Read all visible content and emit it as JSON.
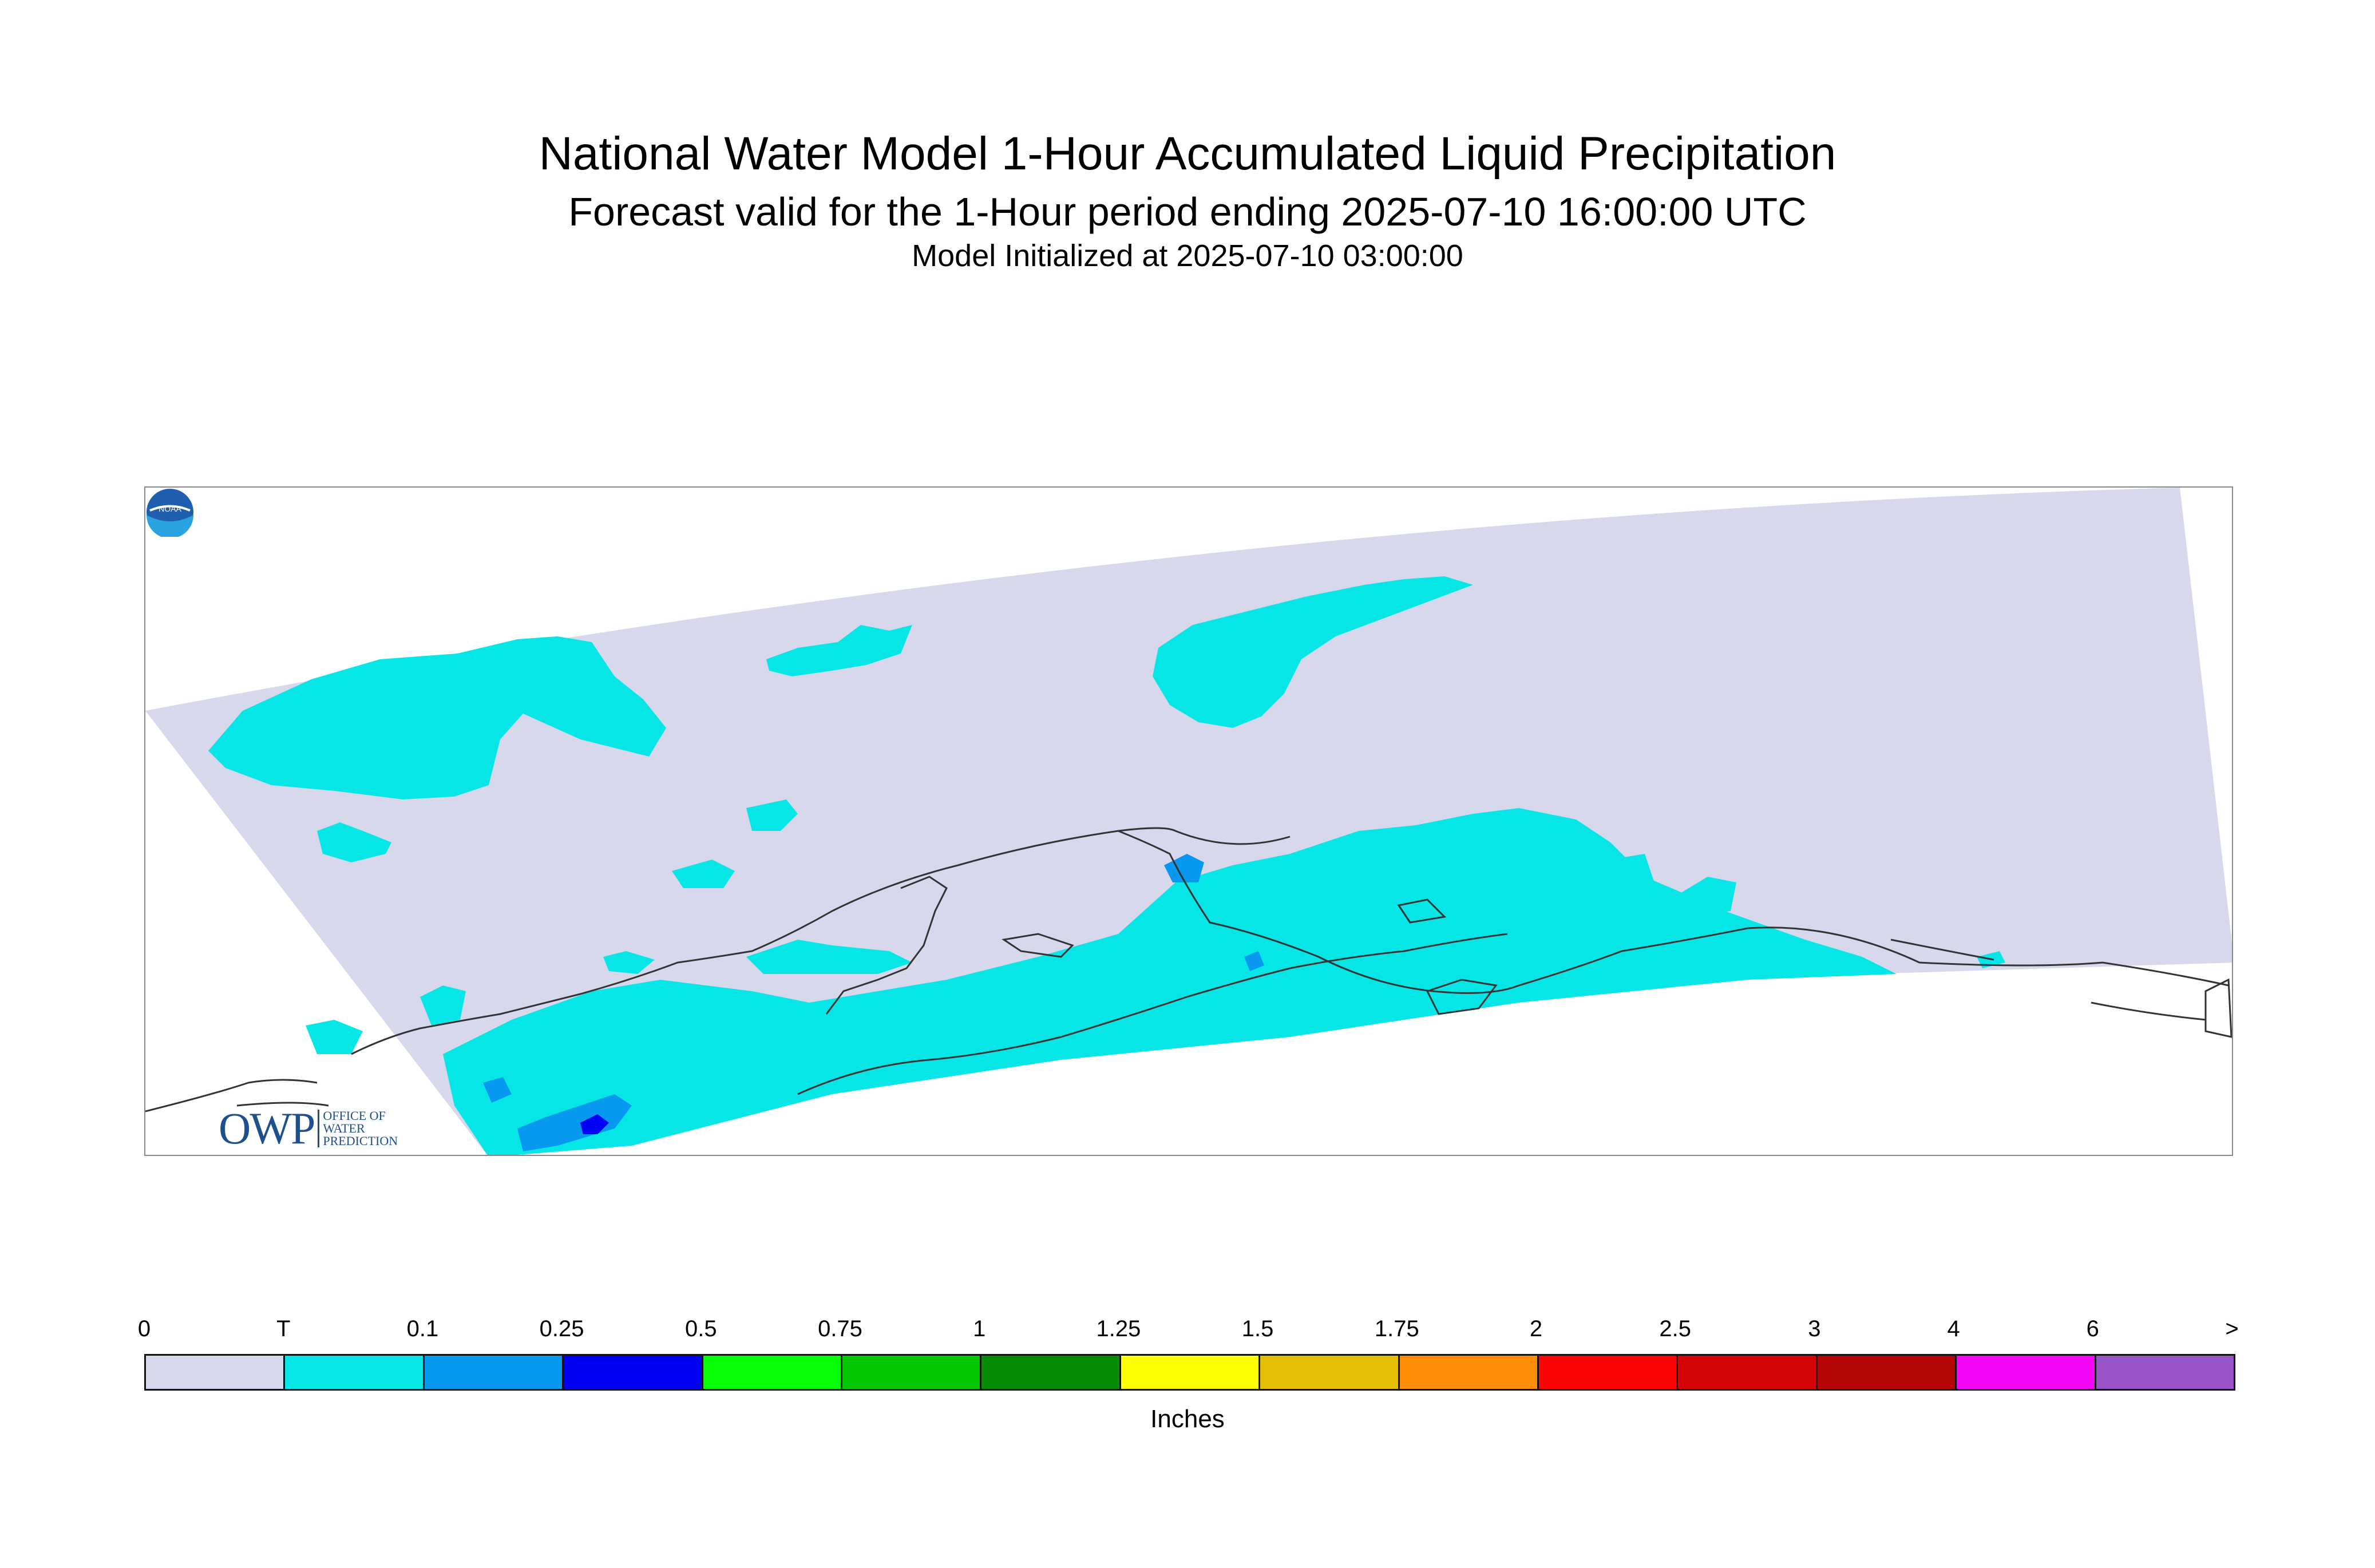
{
  "title": "National Water Model 1-Hour Accumulated Liquid Precipitation",
  "subtitle": "Forecast valid for the 1-Hour period ending 2025-07-10 16:00:00 UTC",
  "init_line": "Model Initialized at 2025-07-10 03:00:00",
  "logos": {
    "owp_mark": "OWP",
    "owp_text": [
      "Office of",
      "Water",
      "Prediction"
    ],
    "noaa": "NOAA"
  },
  "legend": {
    "units": "Inches",
    "labels": [
      "0",
      "T",
      "0.1",
      "0.25",
      "0.5",
      "0.75",
      "1",
      "1.25",
      "1.5",
      "1.75",
      "2",
      "2.5",
      "3",
      "4",
      "6",
      ">"
    ],
    "colors": [
      "#d8d8ec",
      "#06e6e6",
      "#0798ef",
      "#0000f5",
      "#05fe05",
      "#05c805",
      "#058e05",
      "#fefe05",
      "#e4bf05",
      "#fe8e05",
      "#fe0505",
      "#d50505",
      "#b50505",
      "#f505f5",
      "#9955c8"
    ]
  },
  "colors": {
    "domain": "#d8d8ec",
    "trace": "#06e6e6",
    "light_blue": "#0798ef",
    "blue": "#0000f5",
    "coast": "#333333"
  }
}
